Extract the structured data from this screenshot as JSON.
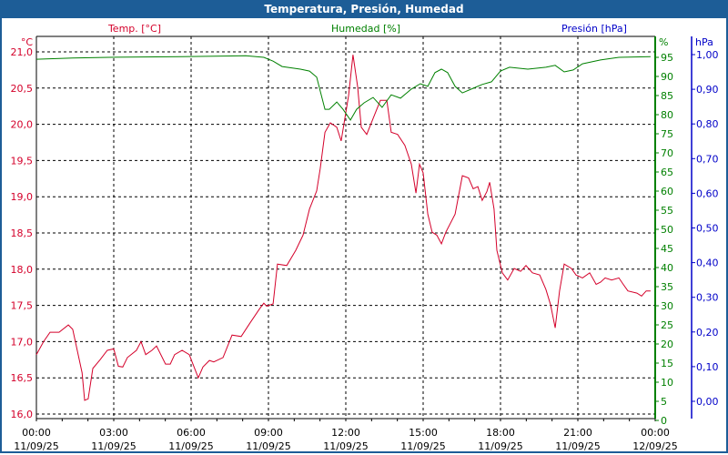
{
  "window": {
    "title": "Temperatura, Presión, Humedad"
  },
  "chart_data": {
    "type": "line",
    "title": "Temperatura, Presión, Humedad",
    "x_unit": "hours since 11/09/25 00:00",
    "xlim": [
      0,
      24
    ],
    "x_ticks": [
      {
        "h": 0,
        "time": "00:00",
        "date": "11/09/25"
      },
      {
        "h": 3,
        "time": "03:00",
        "date": "11/09/25"
      },
      {
        "h": 6,
        "time": "06:00",
        "date": "11/09/25"
      },
      {
        "h": 9,
        "time": "09:00",
        "date": "11/09/25"
      },
      {
        "h": 12,
        "time": "12:00",
        "date": "11/09/25"
      },
      {
        "h": 15,
        "time": "15:00",
        "date": "11/09/25"
      },
      {
        "h": 18,
        "time": "18:00",
        "date": "11/09/25"
      },
      {
        "h": 21,
        "time": "21:00",
        "date": "11/09/25"
      },
      {
        "h": 24,
        "time": "00:00",
        "date": "12/09/25"
      }
    ],
    "axes": {
      "temp": {
        "label": "Temp. [°C]",
        "unit": "°C",
        "ylim": [
          16.0,
          21.0
        ],
        "ticks": [
          "16,0",
          "16,5",
          "17,0",
          "17,5",
          "18,0",
          "18,5",
          "19,0",
          "19,5",
          "20,0",
          "20,5",
          "21,0"
        ],
        "color": "#d4002a"
      },
      "hum": {
        "label": "Humedad [%]",
        "unit": "%",
        "ylim": [
          0,
          95
        ],
        "ticks": [
          "0",
          "5",
          "10",
          "15",
          "20",
          "25",
          "30",
          "35",
          "40",
          "45",
          "50",
          "55",
          "60",
          "65",
          "70",
          "75",
          "80",
          "85",
          "90",
          "95"
        ],
        "color": "#008000"
      },
      "pres": {
        "label": "Presión [hPa]",
        "unit": "hPa",
        "ylim": [
          0.0,
          1.0
        ],
        "ticks": [
          "0,00",
          "0,10",
          "0,20",
          "0,30",
          "0,40",
          "0,50",
          "0,60",
          "0,70",
          "0,80",
          "0,90",
          "1,00"
        ],
        "color": "#0000c8"
      }
    },
    "series": [
      {
        "name": "Temp. [°C]",
        "axis": "temp",
        "color": "#d4002a",
        "points": [
          [
            0,
            16.82
          ],
          [
            0.28,
            17.0
          ],
          [
            0.53,
            17.13
          ],
          [
            0.88,
            17.13
          ],
          [
            1.24,
            17.23
          ],
          [
            1.41,
            17.17
          ],
          [
            1.77,
            16.57
          ],
          [
            1.87,
            16.19
          ],
          [
            2.01,
            16.21
          ],
          [
            2.19,
            16.63
          ],
          [
            2.47,
            16.75
          ],
          [
            2.75,
            16.88
          ],
          [
            3.0,
            16.9
          ],
          [
            3.18,
            16.66
          ],
          [
            3.35,
            16.65
          ],
          [
            3.53,
            16.78
          ],
          [
            3.88,
            16.88
          ],
          [
            4.06,
            17.0
          ],
          [
            4.24,
            16.82
          ],
          [
            4.48,
            16.88
          ],
          [
            4.66,
            16.94
          ],
          [
            5.01,
            16.69
          ],
          [
            5.19,
            16.69
          ],
          [
            5.36,
            16.82
          ],
          [
            5.65,
            16.88
          ],
          [
            5.93,
            16.82
          ],
          [
            6.07,
            16.69
          ],
          [
            6.28,
            16.5
          ],
          [
            6.46,
            16.65
          ],
          [
            6.71,
            16.74
          ],
          [
            6.88,
            16.72
          ],
          [
            7.24,
            16.78
          ],
          [
            7.59,
            17.09
          ],
          [
            7.94,
            17.07
          ],
          [
            8.29,
            17.26
          ],
          [
            8.65,
            17.45
          ],
          [
            8.82,
            17.53
          ],
          [
            8.93,
            17.49
          ],
          [
            9.18,
            17.52
          ],
          [
            9.35,
            18.07
          ],
          [
            9.71,
            18.05
          ],
          [
            10.06,
            18.26
          ],
          [
            10.34,
            18.47
          ],
          [
            10.59,
            18.83
          ],
          [
            10.87,
            19.08
          ],
          [
            11.01,
            19.39
          ],
          [
            11.19,
            19.89
          ],
          [
            11.4,
            20.02
          ],
          [
            11.65,
            19.96
          ],
          [
            11.82,
            19.77
          ],
          [
            12.11,
            20.4
          ],
          [
            12.28,
            20.96
          ],
          [
            12.46,
            20.52
          ],
          [
            12.6,
            19.96
          ],
          [
            12.81,
            19.86
          ],
          [
            13.06,
            20.08
          ],
          [
            13.34,
            20.33
          ],
          [
            13.59,
            20.33
          ],
          [
            13.76,
            19.89
          ],
          [
            14.01,
            19.86
          ],
          [
            14.29,
            19.71
          ],
          [
            14.54,
            19.45
          ],
          [
            14.72,
            19.05
          ],
          [
            14.86,
            19.45
          ],
          [
            15.0,
            19.33
          ],
          [
            15.18,
            18.76
          ],
          [
            15.35,
            18.51
          ],
          [
            15.53,
            18.47
          ],
          [
            15.71,
            18.35
          ],
          [
            15.88,
            18.51
          ],
          [
            16.24,
            18.76
          ],
          [
            16.52,
            19.29
          ],
          [
            16.76,
            19.26
          ],
          [
            16.94,
            19.11
          ],
          [
            17.12,
            19.14
          ],
          [
            17.29,
            18.95
          ],
          [
            17.47,
            19.07
          ],
          [
            17.58,
            19.2
          ],
          [
            17.75,
            18.83
          ],
          [
            17.86,
            18.26
          ],
          [
            18.07,
            17.95
          ],
          [
            18.28,
            17.85
          ],
          [
            18.53,
            18.01
          ],
          [
            18.78,
            17.97
          ],
          [
            18.99,
            18.05
          ],
          [
            19.24,
            17.95
          ],
          [
            19.52,
            17.92
          ],
          [
            19.76,
            17.72
          ],
          [
            19.94,
            17.51
          ],
          [
            20.12,
            17.19
          ],
          [
            20.29,
            17.7
          ],
          [
            20.47,
            18.07
          ],
          [
            20.75,
            18.01
          ],
          [
            20.93,
            17.92
          ],
          [
            21.18,
            17.88
          ],
          [
            21.46,
            17.95
          ],
          [
            21.71,
            17.79
          ],
          [
            21.88,
            17.82
          ],
          [
            22.06,
            17.88
          ],
          [
            22.31,
            17.85
          ],
          [
            22.59,
            17.88
          ],
          [
            22.76,
            17.79
          ],
          [
            22.94,
            17.7
          ],
          [
            23.29,
            17.67
          ],
          [
            23.47,
            17.63
          ],
          [
            23.65,
            17.7
          ],
          [
            23.82,
            17.7
          ]
        ]
      },
      {
        "name": "Humedad [%]",
        "axis": "hum",
        "color": "#008000",
        "points": [
          [
            0,
            94.5
          ],
          [
            1.41,
            94.8
          ],
          [
            2.82,
            95.0
          ],
          [
            5.65,
            95.2
          ],
          [
            8.12,
            95.4
          ],
          [
            8.82,
            95.0
          ],
          [
            9.18,
            94.0
          ],
          [
            9.53,
            92.6
          ],
          [
            10.24,
            91.9
          ],
          [
            10.59,
            91.4
          ],
          [
            10.87,
            89.8
          ],
          [
            11.01,
            86.2
          ],
          [
            11.19,
            81.4
          ],
          [
            11.36,
            81.4
          ],
          [
            11.65,
            83.3
          ],
          [
            11.89,
            81.4
          ],
          [
            12.18,
            78.6
          ],
          [
            12.42,
            81.4
          ],
          [
            12.71,
            83.1
          ],
          [
            13.06,
            84.5
          ],
          [
            13.41,
            81.9
          ],
          [
            13.76,
            85.2
          ],
          [
            14.12,
            84.3
          ],
          [
            14.54,
            86.7
          ],
          [
            14.89,
            88.1
          ],
          [
            15.18,
            87.4
          ],
          [
            15.46,
            91.0
          ],
          [
            15.71,
            91.9
          ],
          [
            15.95,
            91.0
          ],
          [
            16.24,
            87.4
          ],
          [
            16.52,
            85.7
          ],
          [
            16.94,
            86.9
          ],
          [
            17.29,
            87.9
          ],
          [
            17.65,
            88.6
          ],
          [
            18.0,
            91.4
          ],
          [
            18.35,
            92.4
          ],
          [
            19.06,
            91.9
          ],
          [
            19.76,
            92.4
          ],
          [
            20.12,
            92.9
          ],
          [
            20.47,
            91.2
          ],
          [
            20.82,
            91.7
          ],
          [
            21.18,
            93.3
          ],
          [
            21.88,
            94.3
          ],
          [
            22.59,
            95.0
          ],
          [
            23.82,
            95.2
          ]
        ]
      },
      {
        "name": "Presión [hPa]",
        "axis": "pres",
        "color": "#0000c8",
        "points": []
      }
    ],
    "grid": true
  }
}
